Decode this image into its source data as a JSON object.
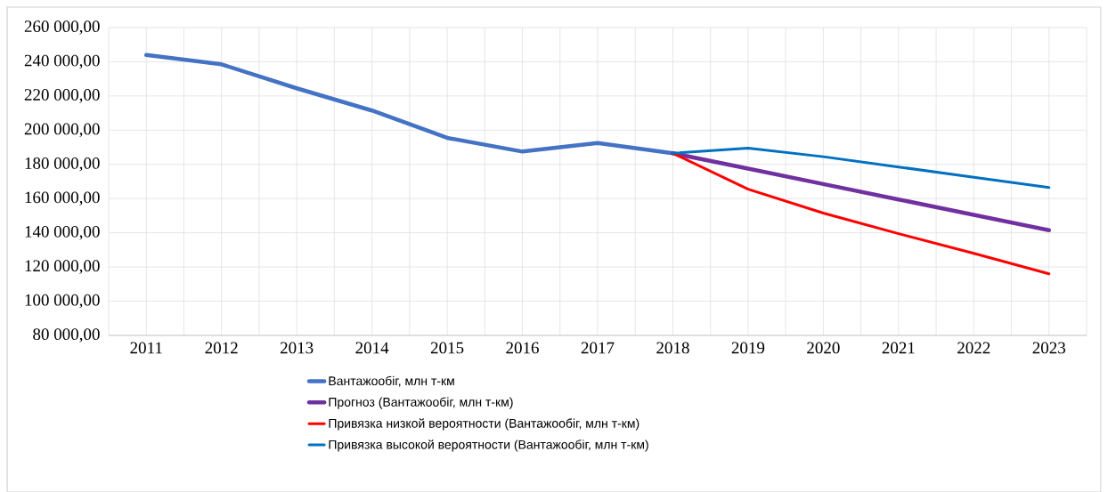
{
  "chart_data": {
    "type": "line",
    "categories": [
      "2011",
      "2012",
      "2013",
      "2014",
      "2015",
      "2016",
      "2017",
      "2018",
      "2019",
      "2020",
      "2021",
      "2022",
      "2023"
    ],
    "series": [
      {
        "name": "Вантажообіг, млн т-км",
        "color": "#4472c4",
        "values": [
          244000,
          238500,
          224500,
          211500,
          195500,
          187500,
          192500,
          186500,
          null,
          null,
          null,
          null,
          null
        ]
      },
      {
        "name": "Прогноз (Вантажообіг, млн т-км)",
        "color": "#7030a0",
        "values": [
          null,
          null,
          null,
          null,
          null,
          null,
          null,
          186500,
          177500,
          168500,
          159500,
          150500,
          141500
        ]
      },
      {
        "name": "Привязка низкой вероятности (Вантажообіг, млн т-км)",
        "color": "#ff0000",
        "values": [
          null,
          null,
          null,
          null,
          null,
          null,
          null,
          186500,
          165500,
          151500,
          139500,
          128000,
          116000
        ]
      },
      {
        "name": "Привязка высокой вероятности (Вантажообіг, млн т-км)",
        "color": "#0070c0",
        "values": [
          null,
          null,
          null,
          null,
          null,
          null,
          null,
          186500,
          189500,
          184500,
          178500,
          172500,
          166500
        ]
      }
    ],
    "ylim": [
      80000,
      260000
    ],
    "yticks": [
      {
        "value": 80000,
        "label": "80 000,00"
      },
      {
        "value": 100000,
        "label": "100 000,00"
      },
      {
        "value": 120000,
        "label": "120 000,00"
      },
      {
        "value": 140000,
        "label": "140 000,00"
      },
      {
        "value": 160000,
        "label": "160 000,00"
      },
      {
        "value": 180000,
        "label": "180 000,00"
      },
      {
        "value": 200000,
        "label": "200 000,00"
      },
      {
        "value": 220000,
        "label": "220 000,00"
      },
      {
        "value": 240000,
        "label": "240 000,00"
      },
      {
        "value": 260000,
        "label": "260 000,00"
      }
    ],
    "grid": true,
    "legend": "bottom",
    "marker": "none",
    "line_style": "solid"
  }
}
